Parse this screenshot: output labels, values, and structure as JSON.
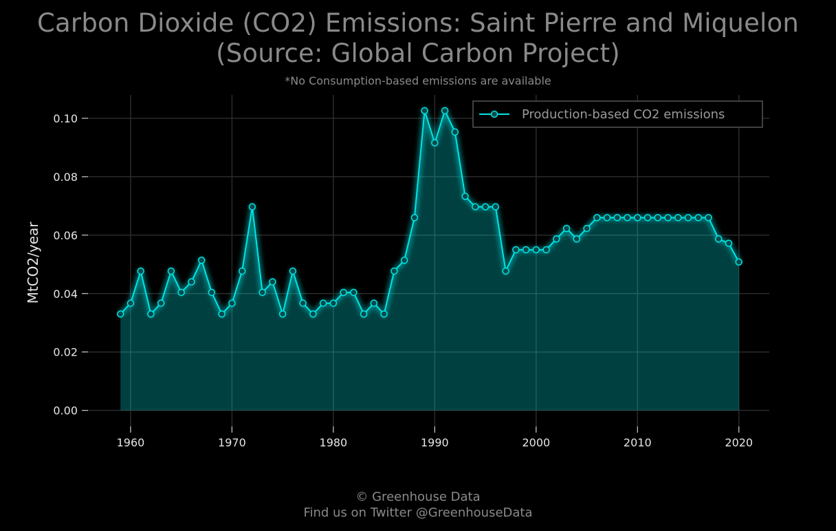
{
  "chart_data": {
    "type": "area",
    "title_line1": "Carbon Dioxide (CO2) Emissions: Saint Pierre and Miquelon",
    "title_line2": "(Source: Global Carbon Project)",
    "subtitle": "*No Consumption-based emissions are available",
    "xlabel": "",
    "ylabel": "MtCO2/year",
    "xlim": [
      1955.8,
      2023
    ],
    "ylim": [
      -0.0055,
      0.108
    ],
    "xticks": [
      1960,
      1970,
      1980,
      1990,
      2000,
      2010,
      2020
    ],
    "yticks": [
      "0.00",
      "0.02",
      "0.04",
      "0.06",
      "0.08",
      "0.10"
    ],
    "grid": true,
    "legend_position": "top-right",
    "series": [
      {
        "name": "Production-based CO2 emissions",
        "color": "#00e5e5",
        "x": [
          1959,
          1960,
          1961,
          1962,
          1963,
          1964,
          1965,
          1966,
          1967,
          1968,
          1969,
          1970,
          1971,
          1972,
          1973,
          1974,
          1975,
          1976,
          1977,
          1978,
          1979,
          1980,
          1981,
          1982,
          1983,
          1984,
          1985,
          1986,
          1987,
          1988,
          1989,
          1990,
          1991,
          1992,
          1993,
          1994,
          1995,
          1996,
          1997,
          1998,
          1999,
          2000,
          2001,
          2002,
          2003,
          2004,
          2005,
          2006,
          2007,
          2008,
          2009,
          2010,
          2011,
          2012,
          2013,
          2014,
          2015,
          2016,
          2017,
          2018,
          2019,
          2020
        ],
        "values": [
          0.033,
          0.0367,
          0.0477,
          0.033,
          0.0367,
          0.0477,
          0.0404,
          0.044,
          0.0514,
          0.0404,
          0.033,
          0.0367,
          0.0477,
          0.0697,
          0.0404,
          0.044,
          0.033,
          0.0477,
          0.0367,
          0.033,
          0.0367,
          0.0367,
          0.0404,
          0.0404,
          0.033,
          0.0367,
          0.033,
          0.0477,
          0.0514,
          0.066,
          0.1026,
          0.0916,
          0.1026,
          0.0953,
          0.0733,
          0.0697,
          0.0697,
          0.0697,
          0.0477,
          0.055,
          0.055,
          0.055,
          0.055,
          0.0587,
          0.0623,
          0.0587,
          0.0623,
          0.066,
          0.066,
          0.066,
          0.066,
          0.066,
          0.066,
          0.066,
          0.066,
          0.066,
          0.066,
          0.066,
          0.066,
          0.0587,
          0.0572,
          0.0508
        ]
      }
    ]
  },
  "footer": {
    "line1": "© Greenhouse Data",
    "line2": "Find us on Twitter @GreenhouseData"
  }
}
